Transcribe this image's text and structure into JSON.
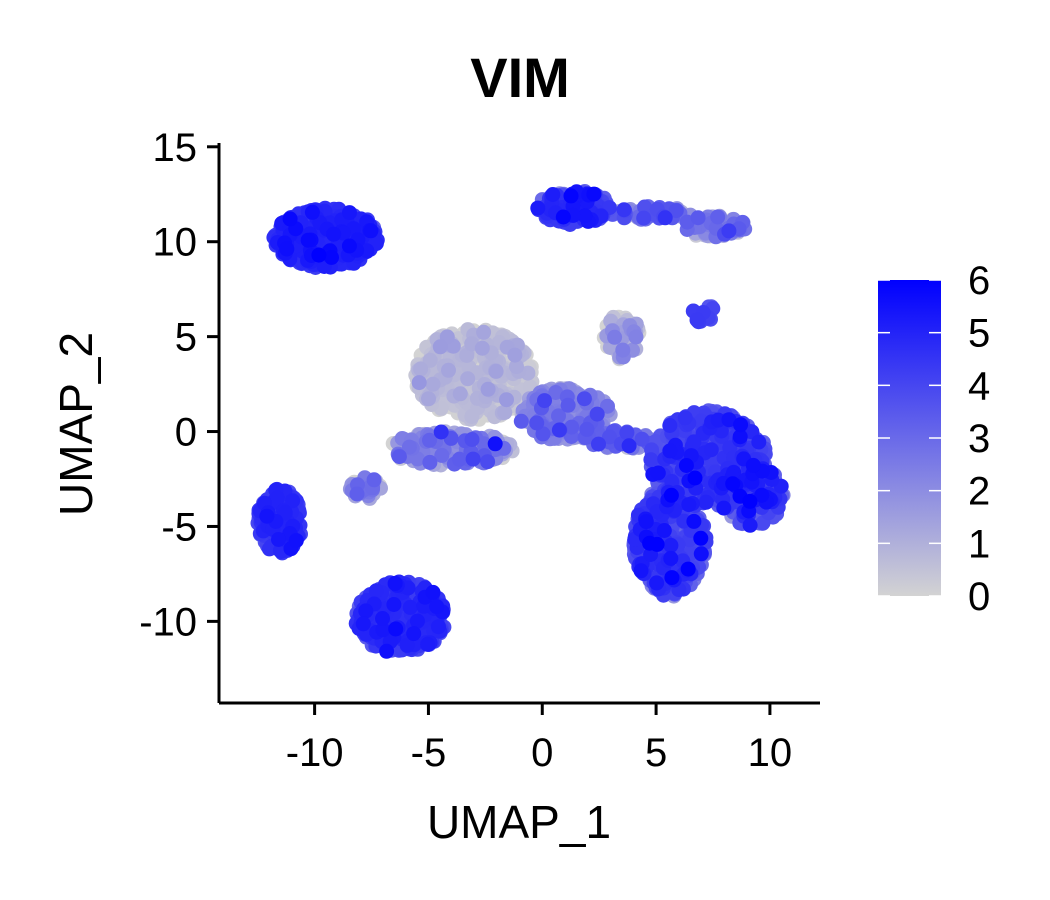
{
  "chart_data": {
    "type": "scatter",
    "title": "VIM",
    "xlabel": "UMAP_1",
    "ylabel": "UMAP_2",
    "xlim": [
      -14.2,
      12.2
    ],
    "ylim": [
      -14.3,
      15.2
    ],
    "xticks": [
      -10,
      -5,
      0,
      5,
      10
    ],
    "xtick_labels": [
      "-10",
      "-5",
      "0",
      "5",
      "10"
    ],
    "yticks": [
      -10,
      -5,
      0,
      5,
      10,
      15
    ],
    "ytick_labels": [
      "-10",
      "-5",
      "0",
      "5",
      "10",
      "15"
    ],
    "grid": false,
    "legend_position": "right",
    "colorbar": {
      "min": 0,
      "max": 6,
      "ticks": [
        0,
        1,
        2,
        3,
        4,
        5,
        6
      ],
      "tick_labels": [
        "0",
        "1",
        "2",
        "3",
        "4",
        "5",
        "6"
      ],
      "low_color": "#d3d3d3",
      "high_color": "#0000ff"
    },
    "clusters": [
      {
        "cx": -9.5,
        "cy": 10.2,
        "rx": 2.3,
        "ry": 1.6,
        "n": 380,
        "mean": 4.6,
        "sd": 0.5
      },
      {
        "cx": -11.5,
        "cy": -4.7,
        "rx": 1.0,
        "ry": 1.7,
        "n": 180,
        "mean": 4.3,
        "sd": 0.5
      },
      {
        "cx": -6.2,
        "cy": -9.8,
        "rx": 2.0,
        "ry": 1.9,
        "n": 340,
        "mean": 4.3,
        "sd": 0.6
      },
      {
        "cx": 1.4,
        "cy": 11.8,
        "rx": 1.6,
        "ry": 0.9,
        "n": 150,
        "mean": 4.1,
        "sd": 0.8
      },
      {
        "cx": 4.6,
        "cy": 11.5,
        "rx": 2.0,
        "ry": 0.35,
        "n": 60,
        "mean": 2.6,
        "sd": 0.9
      },
      {
        "cx": 7.6,
        "cy": 10.8,
        "rx": 1.4,
        "ry": 0.6,
        "n": 70,
        "mean": 1.9,
        "sd": 1.0
      },
      {
        "cx": 7.1,
        "cy": 6.2,
        "rx": 0.5,
        "ry": 0.5,
        "n": 14,
        "mean": 3.9,
        "sd": 0.4
      },
      {
        "cx": -3.0,
        "cy": 3.0,
        "rx": 2.6,
        "ry": 2.4,
        "n": 520,
        "mean": 0.25,
        "sd": 0.5
      },
      {
        "cx": 1.0,
        "cy": 0.9,
        "rx": 2.0,
        "ry": 1.4,
        "n": 240,
        "mean": 1.9,
        "sd": 1.0
      },
      {
        "cx": 3.5,
        "cy": 5.0,
        "rx": 0.8,
        "ry": 1.2,
        "n": 60,
        "mean": 0.8,
        "sd": 0.9
      },
      {
        "cx": -4.0,
        "cy": -0.9,
        "rx": 2.7,
        "ry": 0.9,
        "n": 150,
        "mean": 1.6,
        "sd": 1.1
      },
      {
        "cx": -7.8,
        "cy": -3.0,
        "rx": 0.7,
        "ry": 0.6,
        "n": 35,
        "mean": 2.2,
        "sd": 0.9
      },
      {
        "cx": 3.5,
        "cy": -0.4,
        "rx": 1.6,
        "ry": 0.5,
        "n": 60,
        "mean": 2.7,
        "sd": 1.0
      },
      {
        "cx": 7.3,
        "cy": -1.5,
        "rx": 2.6,
        "ry": 2.6,
        "n": 420,
        "mean": 3.9,
        "sd": 0.8
      },
      {
        "cx": 5.6,
        "cy": -5.8,
        "rx": 1.6,
        "ry": 2.9,
        "n": 360,
        "mean": 3.7,
        "sd": 0.9
      },
      {
        "cx": 9.2,
        "cy": -3.4,
        "rx": 1.4,
        "ry": 1.6,
        "n": 140,
        "mean": 3.8,
        "sd": 0.9
      }
    ]
  }
}
